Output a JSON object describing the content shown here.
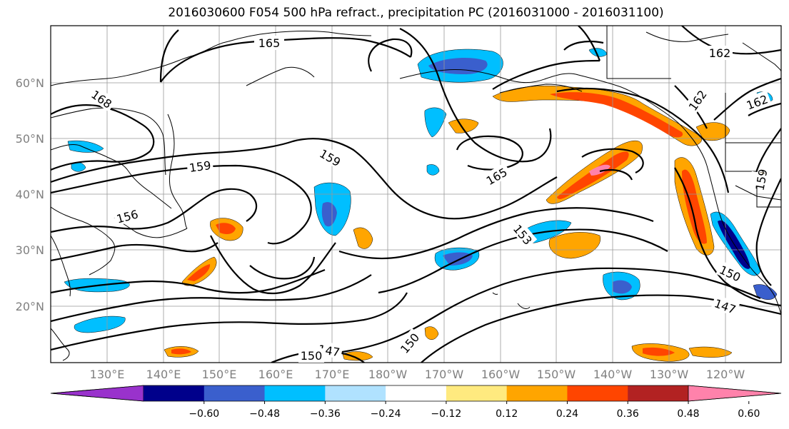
{
  "title": "2016030600 F054 500 hPa refract., precipitation PC (2016031000 - 2016031100)",
  "map": {
    "lat_labels": [
      "60°N",
      "50°N",
      "40°N",
      "30°N",
      "20°N"
    ],
    "lon_labels": [
      "130°E",
      "140°E",
      "150°E",
      "160°E",
      "170°E",
      "180°W",
      "170°W",
      "160°W",
      "150°W",
      "140°W",
      "130°W",
      "120°W"
    ],
    "contour_labels": [
      "165",
      "168",
      "159",
      "159",
      "156",
      "165",
      "153",
      "162",
      "162",
      "162",
      "150",
      "147",
      "150",
      "147",
      "150",
      "159"
    ],
    "fill_colors": {
      "strong_positive": "#ff4500",
      "positive": "#ffa500",
      "weak_positive": "#ffea7f",
      "weak_negative": "#b0e2ff",
      "negative": "#00bfff",
      "strong_negative": "#3a5fcd"
    }
  },
  "colorbar": {
    "colors": [
      "#9932cc",
      "#00008b",
      "#3a5fcd",
      "#00bfff",
      "#b0e2ff",
      "#ffffff",
      "#ffea7f",
      "#ffa500",
      "#ff4500",
      "#b22222",
      "#ff82ab"
    ],
    "tick_labels": [
      "−0.60",
      "−0.48",
      "−0.36",
      "−0.24",
      "−0.12",
      "0.12",
      "0.24",
      "0.36",
      "0.48",
      "0.60"
    ]
  }
}
